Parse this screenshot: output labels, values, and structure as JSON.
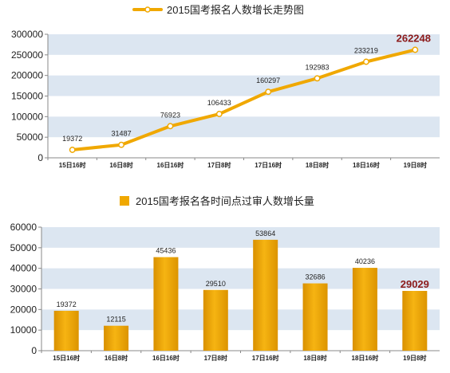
{
  "colors": {
    "band": "#dce6f1",
    "accent": "#f0a800",
    "highlight": "#8c1a1a",
    "axis": "#888888"
  },
  "chart_data": [
    {
      "type": "line",
      "title": "2015国考报名人数增长走势图",
      "categories": [
        "15日16时",
        "16日8时",
        "16日16时",
        "17日8时",
        "17日16时",
        "18日8时",
        "18日16时",
        "19日8时"
      ],
      "values": [
        19372,
        31487,
        76923,
        106433,
        160297,
        192983,
        233219,
        262248
      ],
      "value_labels": [
        "19372",
        "31487",
        "76923",
        "106433",
        "160297",
        "192983",
        "233219",
        "262248"
      ],
      "ylim": [
        0,
        300000
      ],
      "yticks": [
        0,
        50000,
        100000,
        150000,
        200000,
        250000,
        300000
      ],
      "ytick_labels": [
        "0",
        "50000",
        "100000",
        "150000",
        "200000",
        "250000",
        "300000"
      ],
      "grid": "alternating horizontal bands",
      "legend": "top-center"
    },
    {
      "type": "bar",
      "title": "2015国考报名各时间点过审人数增长量",
      "categories": [
        "15日16时",
        "16日8时",
        "16日16时",
        "17日8时",
        "17日16时",
        "18日8时",
        "18日16时",
        "19日8时"
      ],
      "values": [
        19372,
        12115,
        45436,
        29510,
        53864,
        32686,
        40236,
        29029
      ],
      "value_labels": [
        "19372",
        "12115",
        "45436",
        "29510",
        "53864",
        "32686",
        "40236",
        "29029"
      ],
      "ylim": [
        0,
        60000
      ],
      "yticks": [
        0,
        10000,
        20000,
        30000,
        40000,
        50000,
        60000
      ],
      "ytick_labels": [
        "0",
        "10000",
        "20000",
        "30000",
        "40000",
        "50000",
        "60000"
      ],
      "grid": "alternating horizontal bands",
      "legend": "top-center"
    }
  ]
}
